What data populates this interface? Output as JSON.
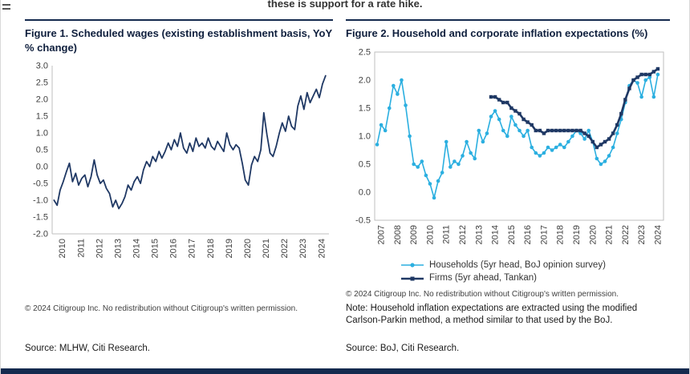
{
  "page": {
    "top_text": "these is support for a rate hike.",
    "accent_navy": "#142a4e",
    "axis_gray": "#bfbfbf",
    "tick_color": "#404040"
  },
  "figure1": {
    "title": "Figure 1. Scheduled wages (existing establishment basis, YoY % change)",
    "copyright": "© 2024 Citigroup Inc. No redistribution without Citigroup's written permission.",
    "source": "Source: MLHW, Citi Research."
  },
  "figure2": {
    "title": "Figure 2. Household and corporate inflation expectations (%)",
    "copyright": "© 2024 Citigroup Inc. No redistribution without Citigroup's written permission.",
    "note": "Note: Household inflation expectations are extracted using the modified Carlson-Parkin method, a method similar to that used by the BoJ.",
    "source": "Source: BoJ, Citi Research."
  },
  "chart_data": [
    {
      "type": "line",
      "title": "Figure 1. Scheduled wages (existing establishment basis, YoY % change)",
      "xlabel": "",
      "ylabel": "YoY % change",
      "xlim": [
        2009.9,
        2024.85
      ],
      "ylim": [
        -2.0,
        3.0
      ],
      "ytick_step": 0.5,
      "xticks": [
        2010,
        2011,
        2012,
        2013,
        2014,
        2015,
        2016,
        2017,
        2018,
        2019,
        2020,
        2021,
        2022,
        2023,
        2024
      ],
      "xtick_offset": 0.45,
      "grid": false,
      "border": false,
      "legend_position": "none",
      "series": [
        {
          "name": "Scheduled wages (YoY %)",
          "color": "#1f3864",
          "width": 1.8,
          "marker": "none",
          "points": [
            [
              2010.0,
              -1.0
            ],
            [
              2010.17,
              -1.15
            ],
            [
              2010.33,
              -0.7
            ],
            [
              2010.5,
              -0.45
            ],
            [
              2010.67,
              -0.15
            ],
            [
              2010.83,
              0.1
            ],
            [
              2011.0,
              -0.45
            ],
            [
              2011.17,
              -0.2
            ],
            [
              2011.33,
              -0.55
            ],
            [
              2011.5,
              -0.35
            ],
            [
              2011.67,
              -0.25
            ],
            [
              2011.83,
              -0.6
            ],
            [
              2012.0,
              -0.3
            ],
            [
              2012.17,
              0.2
            ],
            [
              2012.33,
              -0.25
            ],
            [
              2012.5,
              -0.5
            ],
            [
              2012.67,
              -0.4
            ],
            [
              2012.83,
              -0.65
            ],
            [
              2013.0,
              -0.8
            ],
            [
              2013.17,
              -1.2
            ],
            [
              2013.33,
              -1.0
            ],
            [
              2013.5,
              -1.25
            ],
            [
              2013.67,
              -1.1
            ],
            [
              2013.83,
              -0.9
            ],
            [
              2014.0,
              -0.55
            ],
            [
              2014.17,
              -0.7
            ],
            [
              2014.33,
              -0.45
            ],
            [
              2014.5,
              -0.3
            ],
            [
              2014.67,
              -0.5
            ],
            [
              2014.83,
              -0.1
            ],
            [
              2015.0,
              0.15
            ],
            [
              2015.17,
              0.0
            ],
            [
              2015.33,
              0.3
            ],
            [
              2015.5,
              0.15
            ],
            [
              2015.67,
              0.45
            ],
            [
              2015.83,
              0.25
            ],
            [
              2016.0,
              0.45
            ],
            [
              2016.17,
              0.7
            ],
            [
              2016.33,
              0.5
            ],
            [
              2016.5,
              0.8
            ],
            [
              2016.67,
              0.6
            ],
            [
              2016.83,
              1.0
            ],
            [
              2017.0,
              0.55
            ],
            [
              2017.17,
              0.4
            ],
            [
              2017.33,
              0.7
            ],
            [
              2017.5,
              0.45
            ],
            [
              2017.67,
              0.85
            ],
            [
              2017.83,
              0.6
            ],
            [
              2018.0,
              0.7
            ],
            [
              2018.17,
              0.55
            ],
            [
              2018.33,
              0.85
            ],
            [
              2018.5,
              0.6
            ],
            [
              2018.67,
              0.5
            ],
            [
              2018.83,
              0.75
            ],
            [
              2019.0,
              0.6
            ],
            [
              2019.17,
              0.45
            ],
            [
              2019.33,
              1.0
            ],
            [
              2019.5,
              0.65
            ],
            [
              2019.67,
              0.5
            ],
            [
              2019.83,
              0.65
            ],
            [
              2020.0,
              0.55
            ],
            [
              2020.17,
              0.1
            ],
            [
              2020.33,
              -0.4
            ],
            [
              2020.5,
              -0.55
            ],
            [
              2020.67,
              0.05
            ],
            [
              2020.83,
              0.3
            ],
            [
              2021.0,
              0.15
            ],
            [
              2021.17,
              0.5
            ],
            [
              2021.33,
              1.6
            ],
            [
              2021.5,
              0.95
            ],
            [
              2021.67,
              0.4
            ],
            [
              2021.83,
              0.3
            ],
            [
              2022.0,
              0.6
            ],
            [
              2022.17,
              1.0
            ],
            [
              2022.33,
              1.3
            ],
            [
              2022.5,
              1.05
            ],
            [
              2022.67,
              1.5
            ],
            [
              2022.83,
              1.2
            ],
            [
              2023.0,
              1.1
            ],
            [
              2023.17,
              1.8
            ],
            [
              2023.33,
              2.1
            ],
            [
              2023.5,
              1.7
            ],
            [
              2023.67,
              2.2
            ],
            [
              2023.83,
              1.9
            ],
            [
              2024.0,
              2.1
            ],
            [
              2024.17,
              2.3
            ],
            [
              2024.33,
              2.05
            ],
            [
              2024.5,
              2.45
            ],
            [
              2024.67,
              2.7
            ]
          ]
        }
      ]
    },
    {
      "type": "line",
      "title": "Figure 2. Household and corporate inflation expectations (%)",
      "xlabel": "",
      "ylabel": "%",
      "xlim": [
        2006.85,
        2024.6
      ],
      "ylim": [
        -0.5,
        2.5
      ],
      "ytick_step": 0.5,
      "xticks": [
        2007,
        2008,
        2009,
        2010,
        2011,
        2012,
        2013,
        2014,
        2015,
        2016,
        2017,
        2018,
        2019,
        2020,
        2021,
        2022,
        2023,
        2024
      ],
      "xtick_offset": 0.25,
      "grid": false,
      "border": true,
      "legend_position": "bottom",
      "series": [
        {
          "name": "Households (5yr head, BoJ opinion survey)",
          "color": "#2bafe0",
          "width": 1.6,
          "marker": "circle",
          "points": [
            [
              2007.0,
              0.85
            ],
            [
              2007.25,
              1.2
            ],
            [
              2007.5,
              1.1
            ],
            [
              2007.75,
              1.5
            ],
            [
              2008.0,
              1.9
            ],
            [
              2008.25,
              1.75
            ],
            [
              2008.5,
              2.0
            ],
            [
              2008.75,
              1.55
            ],
            [
              2009.0,
              1.0
            ],
            [
              2009.25,
              0.5
            ],
            [
              2009.5,
              0.45
            ],
            [
              2009.75,
              0.55
            ],
            [
              2010.0,
              0.3
            ],
            [
              2010.25,
              0.15
            ],
            [
              2010.5,
              -0.1
            ],
            [
              2010.75,
              0.2
            ],
            [
              2011.0,
              0.35
            ],
            [
              2011.25,
              0.9
            ],
            [
              2011.5,
              0.45
            ],
            [
              2011.75,
              0.55
            ],
            [
              2012.0,
              0.5
            ],
            [
              2012.25,
              0.65
            ],
            [
              2012.5,
              0.9
            ],
            [
              2012.75,
              0.7
            ],
            [
              2013.0,
              0.6
            ],
            [
              2013.25,
              1.1
            ],
            [
              2013.5,
              0.9
            ],
            [
              2013.75,
              1.05
            ],
            [
              2014.0,
              1.35
            ],
            [
              2014.25,
              1.45
            ],
            [
              2014.5,
              1.3
            ],
            [
              2014.75,
              1.1
            ],
            [
              2015.0,
              1.0
            ],
            [
              2015.25,
              1.35
            ],
            [
              2015.5,
              1.2
            ],
            [
              2015.75,
              1.1
            ],
            [
              2016.0,
              1.0
            ],
            [
              2016.25,
              1.1
            ],
            [
              2016.5,
              0.8
            ],
            [
              2016.75,
              0.7
            ],
            [
              2017.0,
              0.65
            ],
            [
              2017.25,
              0.7
            ],
            [
              2017.5,
              0.8
            ],
            [
              2017.75,
              0.75
            ],
            [
              2018.0,
              0.8
            ],
            [
              2018.25,
              0.85
            ],
            [
              2018.5,
              0.8
            ],
            [
              2018.75,
              0.9
            ],
            [
              2019.0,
              1.0
            ],
            [
              2019.25,
              1.1
            ],
            [
              2019.5,
              1.05
            ],
            [
              2019.75,
              0.95
            ],
            [
              2020.0,
              1.1
            ],
            [
              2020.25,
              0.9
            ],
            [
              2020.5,
              0.6
            ],
            [
              2020.75,
              0.5
            ],
            [
              2021.0,
              0.55
            ],
            [
              2021.25,
              0.65
            ],
            [
              2021.5,
              0.8
            ],
            [
              2021.75,
              1.05
            ],
            [
              2022.0,
              1.3
            ],
            [
              2022.25,
              1.6
            ],
            [
              2022.5,
              1.9
            ],
            [
              2022.75,
              2.0
            ],
            [
              2023.0,
              1.95
            ],
            [
              2023.25,
              1.7
            ],
            [
              2023.5,
              2.0
            ],
            [
              2023.75,
              2.05
            ],
            [
              2024.0,
              1.7
            ],
            [
              2024.25,
              2.1
            ]
          ]
        },
        {
          "name": "Firms (5yr ahead, Tankan)",
          "color": "#1f3864",
          "width": 2.6,
          "marker": "square",
          "points": [
            [
              2014.0,
              1.7
            ],
            [
              2014.25,
              1.7
            ],
            [
              2014.5,
              1.65
            ],
            [
              2014.75,
              1.6
            ],
            [
              2015.0,
              1.6
            ],
            [
              2015.25,
              1.5
            ],
            [
              2015.5,
              1.45
            ],
            [
              2015.75,
              1.4
            ],
            [
              2016.0,
              1.3
            ],
            [
              2016.25,
              1.25
            ],
            [
              2016.5,
              1.2
            ],
            [
              2016.75,
              1.1
            ],
            [
              2017.0,
              1.1
            ],
            [
              2017.25,
              1.05
            ],
            [
              2017.5,
              1.1
            ],
            [
              2017.75,
              1.1
            ],
            [
              2018.0,
              1.1
            ],
            [
              2018.25,
              1.1
            ],
            [
              2018.5,
              1.1
            ],
            [
              2018.75,
              1.1
            ],
            [
              2019.0,
              1.1
            ],
            [
              2019.25,
              1.1
            ],
            [
              2019.5,
              1.1
            ],
            [
              2019.75,
              1.05
            ],
            [
              2020.0,
              1.0
            ],
            [
              2020.25,
              0.9
            ],
            [
              2020.5,
              0.8
            ],
            [
              2020.75,
              0.85
            ],
            [
              2021.0,
              0.9
            ],
            [
              2021.25,
              0.95
            ],
            [
              2021.5,
              1.05
            ],
            [
              2021.75,
              1.2
            ],
            [
              2022.0,
              1.4
            ],
            [
              2022.25,
              1.65
            ],
            [
              2022.5,
              1.85
            ],
            [
              2022.75,
              2.0
            ],
            [
              2023.0,
              2.05
            ],
            [
              2023.25,
              2.1
            ],
            [
              2023.5,
              2.1
            ],
            [
              2023.75,
              2.1
            ],
            [
              2024.0,
              2.15
            ],
            [
              2024.25,
              2.2
            ]
          ]
        }
      ]
    }
  ]
}
